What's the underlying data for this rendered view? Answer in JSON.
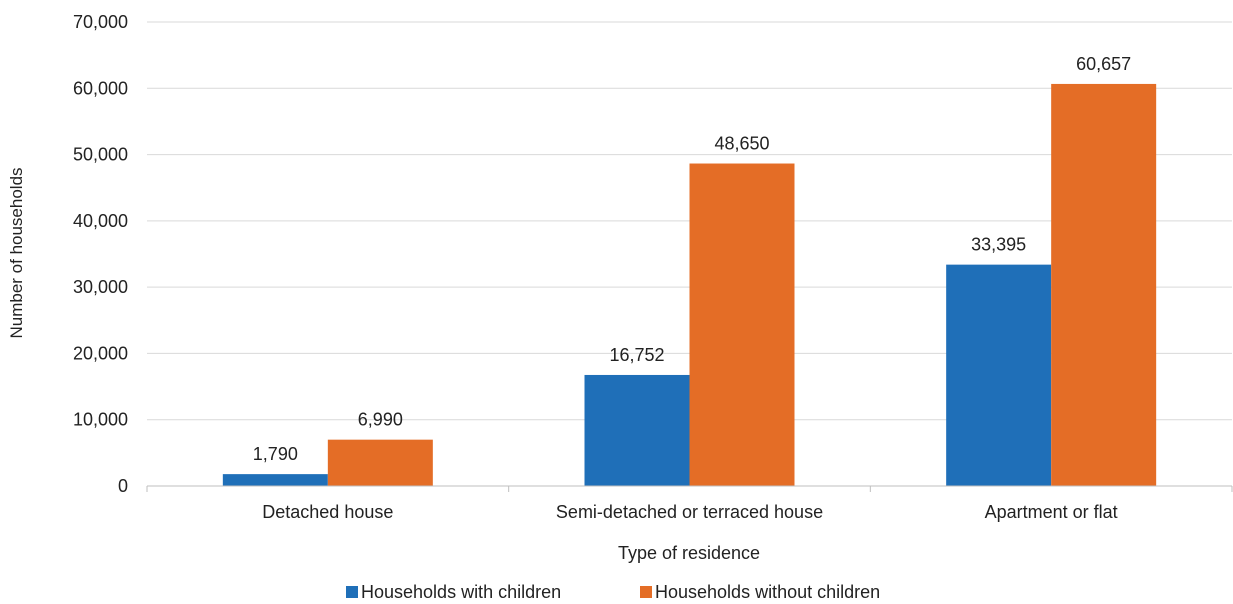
{
  "chart_data": {
    "type": "bar",
    "title": "",
    "xlabel": "Type of residence",
    "ylabel": "Number of households",
    "categories": [
      "Detached house",
      "Semi-detached or terraced house",
      "Apartment or flat"
    ],
    "series": [
      {
        "name": "Households with children",
        "values": [
          1790,
          16752,
          33395
        ],
        "labels": [
          "1,790",
          "16,752",
          "33,395"
        ],
        "color": "#1f6fb8"
      },
      {
        "name": "Households without children",
        "values": [
          6990,
          48650,
          60657
        ],
        "labels": [
          "6,990",
          "48,650",
          "60,657"
        ],
        "color": "#e46d26"
      }
    ],
    "ylim": [
      0,
      70000
    ],
    "yticks": [
      0,
      10000,
      20000,
      30000,
      40000,
      50000,
      60000,
      70000
    ],
    "ytick_labels": [
      "0",
      "10,000",
      "20,000",
      "30,000",
      "40,000",
      "50,000",
      "60,000",
      "70,000"
    ],
    "grid": true,
    "legend_position": "bottom"
  }
}
